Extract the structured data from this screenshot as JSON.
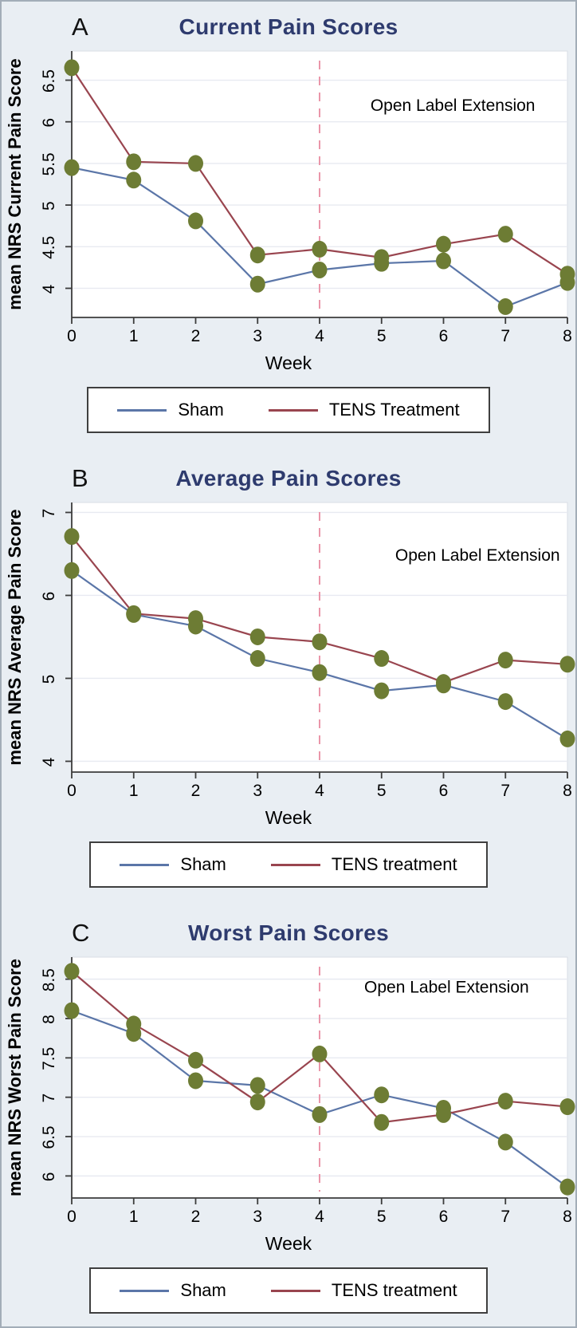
{
  "colors": {
    "background": "#e9eef3",
    "plot_background": "#ffffff",
    "plot_frame": "#d9dee6",
    "gridline": "#e8eaf1",
    "axis": "#3c3c3c",
    "title": "#2e3b6e",
    "sham_line": "#5b76a8",
    "tens_line": "#99454f",
    "marker": "#6d7c34",
    "vline": "#ea96a9",
    "annotation_text": "#000000",
    "legend_border": "#3f3f3f"
  },
  "chart_data": [
    {
      "type": "line",
      "panel_label": "A",
      "title": "Current Pain Scores",
      "xlabel": "Week",
      "ylabel": "mean NRS Current Pain Score",
      "annotation": {
        "text": "Open Label Extension",
        "x": 6.15,
        "y": 6.13
      },
      "x": [
        0,
        1,
        2,
        3,
        4,
        5,
        6,
        7,
        8
      ],
      "xlim": [
        0,
        8
      ],
      "ylim": [
        3.65,
        6.85
      ],
      "yticks": [
        4,
        4.5,
        5,
        5.5,
        6,
        6.5
      ],
      "vline_x": 4,
      "grid": true,
      "legend_position": "bottom",
      "series": [
        {
          "name": "Sham",
          "color": "#5b76a8",
          "values": [
            5.45,
            5.3,
            4.81,
            4.05,
            4.22,
            4.3,
            4.33,
            3.78,
            4.07
          ]
        },
        {
          "name": "TENS Treatment",
          "color": "#99454f",
          "values": [
            6.65,
            5.52,
            5.5,
            4.4,
            4.47,
            4.37,
            4.53,
            4.65,
            4.17
          ]
        }
      ]
    },
    {
      "type": "line",
      "panel_label": "B",
      "title": "Average Pain Scores",
      "xlabel": "Week",
      "ylabel": "mean NRS Average Pain Score",
      "annotation": {
        "text": "Open Label Extension",
        "x": 6.55,
        "y": 6.42
      },
      "x": [
        0,
        1,
        2,
        3,
        4,
        5,
        6,
        7,
        8
      ],
      "xlim": [
        0,
        8
      ],
      "ylim": [
        3.87,
        7.12
      ],
      "yticks": [
        4,
        5,
        6,
        7
      ],
      "vline_x": 4,
      "grid": true,
      "legend_position": "bottom",
      "series": [
        {
          "name": "Sham",
          "color": "#5b76a8",
          "values": [
            6.3,
            5.77,
            5.63,
            5.24,
            5.07,
            4.85,
            4.92,
            4.72,
            4.27
          ]
        },
        {
          "name": "TENS treatment",
          "color": "#99454f",
          "values": [
            6.71,
            5.78,
            5.72,
            5.5,
            5.44,
            5.24,
            4.95,
            5.22,
            5.17
          ]
        }
      ]
    },
    {
      "type": "line",
      "panel_label": "C",
      "title": "Worst Pain Scores",
      "xlabel": "Week",
      "ylabel": "mean NRS Worst Pain Score",
      "annotation": {
        "text": "Open Label Extension",
        "x": 6.05,
        "y": 8.33
      },
      "x": [
        0,
        1,
        2,
        3,
        4,
        5,
        6,
        7,
        8
      ],
      "xlim": [
        0,
        8
      ],
      "ylim": [
        5.72,
        8.78
      ],
      "yticks": [
        6,
        6.5,
        7,
        7.5,
        8,
        8.5
      ],
      "vline_x": 4,
      "grid": true,
      "legend_position": "bottom",
      "series": [
        {
          "name": "Sham",
          "color": "#5b76a8",
          "values": [
            8.1,
            7.81,
            7.21,
            7.15,
            6.78,
            7.03,
            6.86,
            6.43,
            5.86
          ]
        },
        {
          "name": "TENS treatment",
          "color": "#99454f",
          "values": [
            8.6,
            7.93,
            7.47,
            6.94,
            7.55,
            6.68,
            6.78,
            6.95,
            6.88
          ]
        }
      ]
    }
  ]
}
